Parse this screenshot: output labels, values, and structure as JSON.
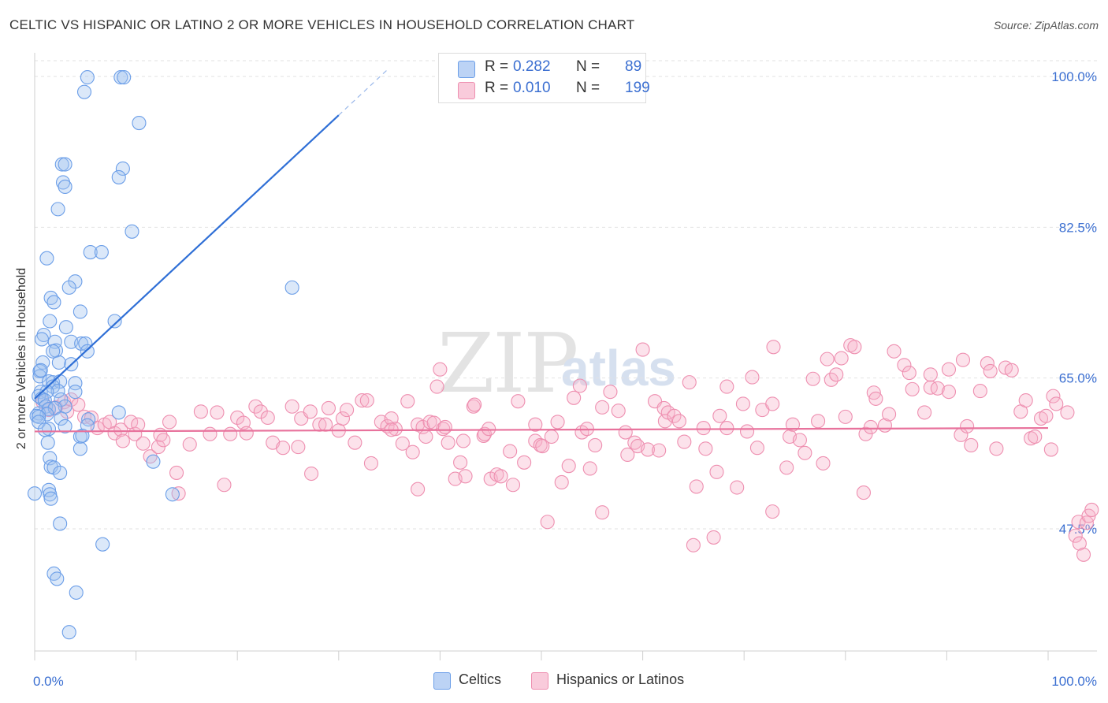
{
  "header": {
    "title": "CELTIC VS HISPANIC OR LATINO 2 OR MORE VEHICLES IN HOUSEHOLD CORRELATION CHART",
    "source": "Source: ZipAtlas.com"
  },
  "watermark": {
    "main": "ZIP",
    "sub": "atlas"
  },
  "stats": [
    {
      "r_label": "R =",
      "r_value": "0.282",
      "n_label": "N =",
      "n_value": "89",
      "color": "#6b9ee8"
    },
    {
      "r_label": "R =",
      "r_value": "0.010",
      "n_label": "N =",
      "n_value": "199",
      "color": "#ee8fb0"
    }
  ],
  "legend": [
    {
      "label": "Celtics",
      "color": "#6b9ee8"
    },
    {
      "label": "Hispanics or Latinos",
      "color": "#ee8fb0"
    }
  ],
  "chart_data": {
    "type": "scatter",
    "ylabel": "2 or more Vehicles in Household",
    "xlim": [
      0,
      100
    ],
    "ylim": [
      33,
      100
    ],
    "x_tick_labels": [
      "0.0%",
      "100.0%"
    ],
    "y_ticks": [
      47.5,
      65.0,
      82.5,
      100.0
    ],
    "y_tick_labels": [
      "47.5%",
      "65.0%",
      "82.5%",
      "100.0%"
    ],
    "grid": "horizontal dashed",
    "legend_position": "bottom-center",
    "series": [
      {
        "name": "Celtics",
        "color": "#6b9ee8",
        "points": [
          [
            5.2,
            99.9
          ],
          [
            8.5,
            99.9
          ],
          [
            8.8,
            99.9
          ],
          [
            4.9,
            98.2
          ],
          [
            10.3,
            94.6
          ],
          [
            2.7,
            89.8
          ],
          [
            3.0,
            89.8
          ],
          [
            8.7,
            89.3
          ],
          [
            8.3,
            88.3
          ],
          [
            2.8,
            87.7
          ],
          [
            3.0,
            87.2
          ],
          [
            2.3,
            84.6
          ],
          [
            9.6,
            82.0
          ],
          [
            5.5,
            79.6
          ],
          [
            6.6,
            79.6
          ],
          [
            1.2,
            78.9
          ],
          [
            4.0,
            76.2
          ],
          [
            3.4,
            75.5
          ],
          [
            25.4,
            75.5
          ],
          [
            1.6,
            74.3
          ],
          [
            1.9,
            73.8
          ],
          [
            4.5,
            72.7
          ],
          [
            1.5,
            71.6
          ],
          [
            3.1,
            70.9
          ],
          [
            7.9,
            71.6
          ],
          [
            0.9,
            70.0
          ],
          [
            0.7,
            69.5
          ],
          [
            2.0,
            69.2
          ],
          [
            3.6,
            69.2
          ],
          [
            4.6,
            69.0
          ],
          [
            5.0,
            69.0
          ],
          [
            2.1,
            68.2
          ],
          [
            5.2,
            68.1
          ],
          [
            0.8,
            66.8
          ],
          [
            2.4,
            66.8
          ],
          [
            3.6,
            66.6
          ],
          [
            0.5,
            65.8
          ],
          [
            0.5,
            65.2
          ],
          [
            1.4,
            64.6
          ],
          [
            1.8,
            64.5
          ],
          [
            2.5,
            64.6
          ],
          [
            1.8,
            64.0
          ],
          [
            4.0,
            64.4
          ],
          [
            2.3,
            63.5
          ],
          [
            0.6,
            63.4
          ],
          [
            1.2,
            63.4
          ],
          [
            4.0,
            63.4
          ],
          [
            0.4,
            62.9
          ],
          [
            0.7,
            62.6
          ],
          [
            1.0,
            62.4
          ],
          [
            2.6,
            62.5
          ],
          [
            1.1,
            61.7
          ],
          [
            3.0,
            61.7
          ],
          [
            1.4,
            61.4
          ],
          [
            2.0,
            61.5
          ],
          [
            0.4,
            60.9
          ],
          [
            1.2,
            60.8
          ],
          [
            8.3,
            61.0
          ],
          [
            0.2,
            60.6
          ],
          [
            0.4,
            60.5
          ],
          [
            2.6,
            60.3
          ],
          [
            5.3,
            60.2
          ],
          [
            0.4,
            59.9
          ],
          [
            3.0,
            59.4
          ],
          [
            5.2,
            59.5
          ],
          [
            1.4,
            59.1
          ],
          [
            1.0,
            59.0
          ],
          [
            4.5,
            58.2
          ],
          [
            4.7,
            58.3
          ],
          [
            1.3,
            57.5
          ],
          [
            4.5,
            56.8
          ],
          [
            1.5,
            55.7
          ],
          [
            11.7,
            55.3
          ],
          [
            1.6,
            54.7
          ],
          [
            1.9,
            54.6
          ],
          [
            2.5,
            54.0
          ],
          [
            1.4,
            52.0
          ],
          [
            1.5,
            51.5
          ],
          [
            1.6,
            51.0
          ],
          [
            13.6,
            51.5
          ],
          [
            2.5,
            48.1
          ],
          [
            6.7,
            45.7
          ],
          [
            1.9,
            42.3
          ],
          [
            2.2,
            41.7
          ],
          [
            4.1,
            40.1
          ],
          [
            3.4,
            35.5
          ],
          [
            0.0,
            51.6
          ],
          [
            0.6,
            65.9
          ],
          [
            1.8,
            68.1
          ]
        ]
      },
      {
        "name": "Hispanics or Latinos",
        "color": "#ee8fb0",
        "points": [
          [
            0.8,
            62.2
          ],
          [
            1.4,
            61.3
          ],
          [
            2.1,
            61.6
          ],
          [
            2.9,
            62.2
          ],
          [
            3.2,
            61.1
          ],
          [
            3.6,
            62.5
          ],
          [
            4.3,
            61.9
          ],
          [
            4.9,
            60.5
          ],
          [
            5.6,
            60.4
          ],
          [
            6.2,
            59.2
          ],
          [
            6.9,
            59.6
          ],
          [
            7.4,
            59.9
          ],
          [
            7.9,
            58.6
          ],
          [
            8.5,
            59.0
          ],
          [
            8.7,
            57.7
          ],
          [
            9.5,
            59.9
          ],
          [
            9.9,
            58.5
          ],
          [
            10.2,
            59.6
          ],
          [
            10.7,
            57.4
          ],
          [
            11.4,
            55.9
          ],
          [
            12.2,
            57.0
          ],
          [
            12.4,
            58.4
          ],
          [
            12.7,
            57.8
          ],
          [
            13.3,
            59.9
          ],
          [
            14.0,
            54.0
          ],
          [
            14.2,
            51.6
          ],
          [
            15.3,
            57.3
          ],
          [
            16.4,
            61.1
          ],
          [
            17.3,
            58.5
          ],
          [
            18.0,
            61.0
          ],
          [
            18.7,
            52.6
          ],
          [
            19.3,
            58.5
          ],
          [
            20.0,
            60.4
          ],
          [
            20.6,
            59.8
          ],
          [
            20.9,
            58.6
          ],
          [
            21.8,
            61.7
          ],
          [
            22.3,
            61.1
          ],
          [
            23.0,
            60.4
          ],
          [
            23.5,
            57.5
          ],
          [
            24.5,
            56.9
          ],
          [
            25.4,
            61.7
          ],
          [
            26.0,
            57.0
          ],
          [
            26.3,
            60.3
          ],
          [
            27.2,
            61.1
          ],
          [
            27.3,
            53.9
          ],
          [
            28.1,
            59.6
          ],
          [
            28.7,
            59.6
          ],
          [
            29.0,
            61.5
          ],
          [
            30.0,
            58.9
          ],
          [
            30.4,
            60.3
          ],
          [
            30.8,
            61.3
          ],
          [
            31.6,
            57.5
          ],
          [
            32.3,
            62.4
          ],
          [
            32.8,
            62.4
          ],
          [
            33.2,
            55.1
          ],
          [
            34.2,
            59.9
          ],
          [
            34.8,
            59.4
          ],
          [
            35.2,
            60.3
          ],
          [
            35.6,
            59.1
          ],
          [
            35.2,
            59.0
          ],
          [
            36.3,
            57.4
          ],
          [
            36.8,
            62.3
          ],
          [
            37.3,
            56.4
          ],
          [
            37.8,
            59.6
          ],
          [
            37.8,
            52.1
          ],
          [
            38.3,
            59.3
          ],
          [
            38.6,
            58.2
          ],
          [
            39.0,
            59.9
          ],
          [
            39.4,
            59.8
          ],
          [
            40.0,
            66.0
          ],
          [
            39.7,
            64.0
          ],
          [
            40.3,
            59.1
          ],
          [
            40.5,
            59.3
          ],
          [
            40.8,
            57.5
          ],
          [
            41.5,
            53.3
          ],
          [
            42.0,
            55.2
          ],
          [
            42.3,
            57.7
          ],
          [
            42.5,
            53.6
          ],
          [
            43.3,
            61.7
          ],
          [
            43.4,
            61.9
          ],
          [
            44.3,
            58.3
          ],
          [
            44.4,
            58.5
          ],
          [
            44.8,
            59.1
          ],
          [
            45.0,
            53.3
          ],
          [
            45.6,
            53.8
          ],
          [
            46.0,
            53.6
          ],
          [
            46.9,
            56.5
          ],
          [
            47.2,
            52.6
          ],
          [
            47.7,
            62.3
          ],
          [
            48.3,
            55.2
          ],
          [
            49.4,
            59.6
          ],
          [
            49.4,
            57.7
          ],
          [
            49.9,
            57.2
          ],
          [
            50.1,
            57.1
          ],
          [
            50.6,
            48.3
          ],
          [
            51.0,
            58.2
          ],
          [
            51.6,
            59.9
          ],
          [
            52.0,
            52.9
          ],
          [
            52.7,
            54.8
          ],
          [
            53.2,
            62.7
          ],
          [
            53.8,
            64.1
          ],
          [
            54.0,
            58.7
          ],
          [
            54.5,
            59.1
          ],
          [
            54.8,
            54.5
          ],
          [
            55.3,
            57.2
          ],
          [
            56.0,
            61.6
          ],
          [
            56.0,
            49.4
          ],
          [
            56.8,
            63.4
          ],
          [
            57.6,
            61.2
          ],
          [
            58.3,
            58.7
          ],
          [
            58.5,
            56.1
          ],
          [
            59.2,
            57.5
          ],
          [
            59.5,
            57.1
          ],
          [
            60.0,
            68.3
          ],
          [
            60.5,
            56.7
          ],
          [
            61.2,
            62.3
          ],
          [
            61.6,
            56.6
          ],
          [
            62.1,
            61.5
          ],
          [
            62.2,
            60.0
          ],
          [
            62.5,
            61.0
          ],
          [
            63.1,
            60.6
          ],
          [
            63.6,
            60.0
          ],
          [
            64.1,
            57.6
          ],
          [
            64.6,
            64.5
          ],
          [
            65.0,
            45.6
          ],
          [
            65.3,
            52.4
          ],
          [
            66.0,
            59.2
          ],
          [
            66.2,
            56.8
          ],
          [
            67.0,
            46.5
          ],
          [
            67.3,
            54.1
          ],
          [
            67.6,
            60.6
          ],
          [
            68.3,
            59.2
          ],
          [
            68.3,
            64.0
          ],
          [
            69.3,
            52.3
          ],
          [
            69.9,
            62.0
          ],
          [
            70.3,
            58.8
          ],
          [
            70.8,
            65.1
          ],
          [
            71.3,
            56.9
          ],
          [
            71.8,
            61.3
          ],
          [
            72.8,
            62.0
          ],
          [
            72.8,
            49.5
          ],
          [
            72.9,
            68.6
          ],
          [
            74.2,
            54.6
          ],
          [
            74.5,
            58.2
          ],
          [
            74.8,
            59.6
          ],
          [
            75.5,
            57.8
          ],
          [
            76.0,
            56.3
          ],
          [
            76.8,
            64.9
          ],
          [
            77.3,
            60.0
          ],
          [
            77.8,
            55.1
          ],
          [
            78.2,
            67.2
          ],
          [
            78.6,
            64.8
          ],
          [
            79.1,
            65.4
          ],
          [
            79.6,
            67.3
          ],
          [
            80.0,
            60.5
          ],
          [
            80.5,
            68.8
          ],
          [
            80.9,
            68.6
          ],
          [
            81.8,
            51.7
          ],
          [
            82.0,
            58.5
          ],
          [
            82.5,
            59.3
          ],
          [
            82.8,
            63.3
          ],
          [
            83.0,
            62.6
          ],
          [
            83.9,
            59.5
          ],
          [
            84.3,
            60.8
          ],
          [
            84.8,
            68.1
          ],
          [
            85.8,
            66.5
          ],
          [
            86.3,
            65.6
          ],
          [
            86.6,
            63.7
          ],
          [
            87.8,
            61.0
          ],
          [
            88.4,
            63.9
          ],
          [
            88.4,
            65.4
          ],
          [
            89.1,
            63.8
          ],
          [
            90.2,
            66.0
          ],
          [
            90.2,
            63.4
          ],
          [
            91.4,
            58.4
          ],
          [
            91.6,
            67.1
          ],
          [
            92.0,
            59.4
          ],
          [
            92.4,
            57.2
          ],
          [
            93.3,
            63.5
          ],
          [
            94.0,
            66.7
          ],
          [
            94.3,
            65.8
          ],
          [
            94.9,
            56.8
          ],
          [
            95.8,
            66.2
          ],
          [
            96.4,
            65.9
          ],
          [
            97.3,
            61.1
          ],
          [
            97.8,
            62.4
          ],
          [
            98.3,
            58.0
          ],
          [
            98.7,
            58.2
          ],
          [
            99.3,
            60.3
          ],
          [
            99.8,
            60.6
          ],
          [
            100.5,
            62.9
          ],
          [
            100.8,
            62.0
          ],
          [
            100.3,
            56.7
          ],
          [
            101.9,
            61.0
          ],
          [
            102.7,
            46.7
          ],
          [
            103.0,
            48.3
          ],
          [
            103.1,
            45.8
          ],
          [
            103.5,
            44.5
          ],
          [
            103.8,
            48.2
          ],
          [
            104.0,
            49.0
          ],
          [
            104.3,
            49.7
          ]
        ]
      }
    ],
    "trend_lines": [
      {
        "series": "Celtics",
        "x": [
          0,
          30
        ],
        "y": [
          62.6,
          95.5
        ],
        "extension_x": [
          30,
          35
        ],
        "extension_y": [
          95.5,
          101.0
        ]
      },
      {
        "series": "Hispanics or Latinos",
        "x": [
          0,
          100
        ],
        "y": [
          58.8,
          59.2
        ]
      }
    ]
  }
}
